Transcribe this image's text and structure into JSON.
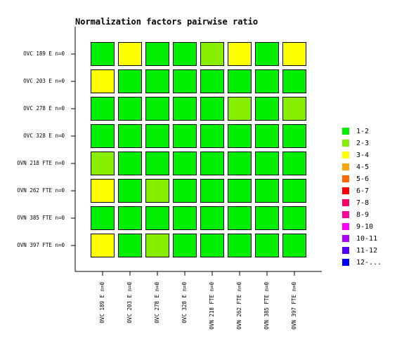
{
  "chart_data": {
    "type": "heatmap",
    "title": "Normalization factors pairwise ratio",
    "rows": [
      "OVC 189 E n=0",
      "OVC 203 E n=0",
      "OVC 278 E n=0",
      "OVC 328 E n=0",
      "OVN 218 FTE n=0",
      "OVN 262 FTE n=0",
      "OVN 385 FTE n=0",
      "OVN 397 FTE n=0"
    ],
    "columns": [
      "OVC 189 E n=0",
      "OVC 203 E n=0",
      "OVC 278 E n=0",
      "OVC 328 E n=0",
      "OVN 218 FTE n=0",
      "OVN 262 FTE n=0",
      "OVN 385 FTE n=0",
      "OVN 397 FTE n=0"
    ],
    "values": [
      [
        1.5,
        3.5,
        1.5,
        1.5,
        2.5,
        3.5,
        1.5,
        3.5
      ],
      [
        3.5,
        1.5,
        1.5,
        1.5,
        1.5,
        1.5,
        1.5,
        1.5
      ],
      [
        1.5,
        1.5,
        1.5,
        1.5,
        1.5,
        2.5,
        1.5,
        2.5
      ],
      [
        1.5,
        1.5,
        1.5,
        1.5,
        1.5,
        1.5,
        1.5,
        1.5
      ],
      [
        2.5,
        1.5,
        1.5,
        1.5,
        1.5,
        1.5,
        1.5,
        1.5
      ],
      [
        3.5,
        1.5,
        2.5,
        1.5,
        1.5,
        1.5,
        1.5,
        1.5
      ],
      [
        1.5,
        1.5,
        1.5,
        1.5,
        1.5,
        1.5,
        1.5,
        1.5
      ],
      [
        3.5,
        1.5,
        2.5,
        1.5,
        1.5,
        1.5,
        1.5,
        1.5
      ]
    ],
    "bins": [
      1,
      2,
      3,
      4,
      5,
      6,
      7,
      8,
      9,
      10,
      11,
      12
    ],
    "legend": [
      {
        "label": "1-2",
        "color": "#00ee00"
      },
      {
        "label": "2-3",
        "color": "#88ee00"
      },
      {
        "label": "3-4",
        "color": "#ffff00"
      },
      {
        "label": "4-5",
        "color": "#ffa500"
      },
      {
        "label": "5-6",
        "color": "#ff6600"
      },
      {
        "label": "6-7",
        "color": "#ff0000"
      },
      {
        "label": "7-8",
        "color": "#ff0066"
      },
      {
        "label": "8-9",
        "color": "#ff0099"
      },
      {
        "label": "9-10",
        "color": "#ff00ff"
      },
      {
        "label": "10-11",
        "color": "#aa00ff"
      },
      {
        "label": "11-12",
        "color": "#5500ff"
      },
      {
        "label": "12-...",
        "color": "#0000ff"
      }
    ]
  }
}
